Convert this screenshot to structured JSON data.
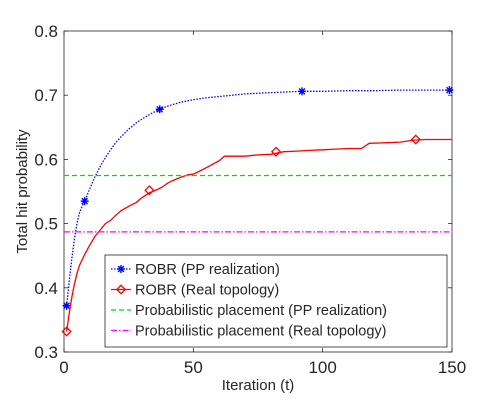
{
  "chart_data": {
    "type": "line",
    "xlabel": "Iteration (t)",
    "ylabel": "Total hit probability",
    "xlim": [
      0,
      150
    ],
    "ylim": [
      0.3,
      0.8
    ],
    "xticks": [
      0,
      50,
      100,
      150
    ],
    "yticks": [
      0.3,
      0.4,
      0.5,
      0.6,
      0.7,
      0.8
    ],
    "xtick_labels": [
      "0",
      "50",
      "100",
      "150"
    ],
    "ytick_labels": [
      "0.3",
      "0.4",
      "0.5",
      "0.6",
      "0.7",
      "0.8"
    ],
    "grid": false,
    "legend_position": "bottom-right",
    "series": [
      {
        "name": "ROBR (PP realization)",
        "color": "#0000ff",
        "line_style": "dotted",
        "marker": "asterisk",
        "x": [
          1,
          2,
          3,
          4,
          5,
          6,
          7,
          8,
          10,
          12,
          14,
          16,
          18,
          20,
          22,
          25,
          28,
          31,
          34,
          37,
          40,
          45,
          50,
          55,
          60,
          70,
          80,
          92,
          100,
          110,
          120,
          130,
          140,
          150
        ],
        "y": [
          0.372,
          0.41,
          0.445,
          0.475,
          0.5,
          0.517,
          0.527,
          0.535,
          0.555,
          0.573,
          0.589,
          0.603,
          0.615,
          0.626,
          0.635,
          0.647,
          0.657,
          0.665,
          0.672,
          0.678,
          0.683,
          0.689,
          0.693,
          0.696,
          0.698,
          0.702,
          0.704,
          0.706,
          0.706,
          0.707,
          0.707,
          0.708,
          0.708,
          0.708
        ],
        "marker_points": [
          {
            "x": 1,
            "y": 0.372
          },
          {
            "x": 8,
            "y": 0.535
          },
          {
            "x": 37,
            "y": 0.678
          },
          {
            "x": 92,
            "y": 0.706
          },
          {
            "x": 149,
            "y": 0.708
          }
        ]
      },
      {
        "name": "ROBR (Real topology)",
        "color": "#ff0000",
        "line_style": "solid",
        "marker": "diamond",
        "x": [
          1,
          2,
          3,
          4,
          5,
          6,
          8,
          10,
          12,
          14,
          16,
          18,
          20,
          22,
          25,
          28,
          30,
          33,
          36,
          38,
          40,
          42,
          45,
          48,
          50,
          55,
          60,
          62,
          70,
          75,
          80,
          85,
          90,
          95,
          100,
          105,
          110,
          115,
          118,
          125,
          130,
          135,
          140,
          145,
          150
        ],
        "y": [
          0.332,
          0.36,
          0.385,
          0.405,
          0.422,
          0.435,
          0.452,
          0.467,
          0.48,
          0.49,
          0.5,
          0.505,
          0.513,
          0.52,
          0.527,
          0.533,
          0.54,
          0.548,
          0.553,
          0.557,
          0.563,
          0.567,
          0.572,
          0.576,
          0.577,
          0.587,
          0.598,
          0.605,
          0.605,
          0.607,
          0.608,
          0.612,
          0.613,
          0.614,
          0.615,
          0.616,
          0.617,
          0.617,
          0.625,
          0.626,
          0.627,
          0.63,
          0.631,
          0.631,
          0.631
        ],
        "marker_points": [
          {
            "x": 1,
            "y": 0.332
          },
          {
            "x": 33,
            "y": 0.552
          },
          {
            "x": 82,
            "y": 0.612
          },
          {
            "x": 136,
            "y": 0.631
          }
        ]
      },
      {
        "name": "Probabilistic placement (PP realization)",
        "color": "#00dd00",
        "line_style": "dashed",
        "marker": "none",
        "x": [
          0,
          150
        ],
        "y": [
          0.575,
          0.575
        ]
      },
      {
        "name": "Probabilistic placement (Real topology)",
        "color": "#ff00ff",
        "line_style": "dashdot",
        "marker": "none",
        "x": [
          0,
          150
        ],
        "y": [
          0.487,
          0.487
        ]
      }
    ]
  }
}
